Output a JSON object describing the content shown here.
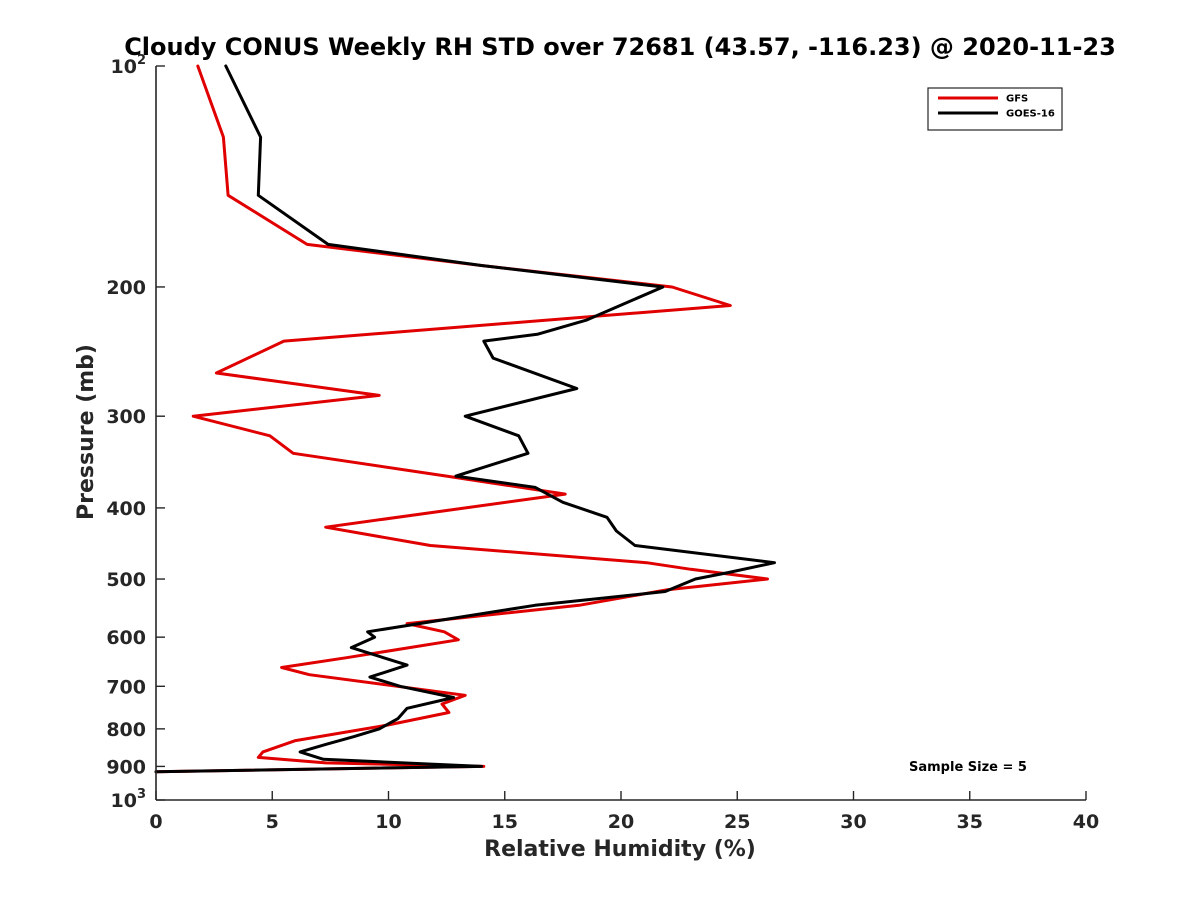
{
  "chart_data": {
    "type": "line",
    "title": "Cloudy CONUS Weekly RH STD over 72681 (43.57, -116.23) @ 2020-11-23",
    "xlabel": "Relative Humidity (%)",
    "ylabel": "Pressure (mb)",
    "xlim": [
      0,
      40
    ],
    "ylim": [
      100,
      1000
    ],
    "yscale": "log",
    "y_reversed": true,
    "x_ticks": [
      "0",
      "5",
      "10",
      "15",
      "20",
      "25",
      "30",
      "35",
      "40"
    ],
    "y_ticks": [
      {
        "value": 100,
        "label": "10",
        "sup": "2"
      },
      {
        "value": 200,
        "label": "200"
      },
      {
        "value": 300,
        "label": "300"
      },
      {
        "value": 400,
        "label": "400"
      },
      {
        "value": 500,
        "label": "500"
      },
      {
        "value": 600,
        "label": "600"
      },
      {
        "value": 700,
        "label": "700"
      },
      {
        "value": 800,
        "label": "800"
      },
      {
        "value": 900,
        "label": "900"
      },
      {
        "value": 1000,
        "label": "10",
        "sup": "3"
      }
    ],
    "legend_position": "top-right",
    "grid": false,
    "annotation": "Sample Size = 5",
    "series": [
      {
        "name": "GFS",
        "color": "#e00000",
        "points": [
          [
            1.8,
            100
          ],
          [
            2.9,
            125
          ],
          [
            3.1,
            150
          ],
          [
            6.5,
            175
          ],
          [
            14.0,
            187
          ],
          [
            22.2,
            200
          ],
          [
            24.7,
            212
          ],
          [
            5.5,
            237
          ],
          [
            2.6,
            262
          ],
          [
            9.6,
            281
          ],
          [
            1.6,
            300
          ],
          [
            4.9,
            319
          ],
          [
            5.9,
            337
          ],
          [
            12.5,
            362
          ],
          [
            17.6,
            383
          ],
          [
            7.3,
            425
          ],
          [
            11.8,
            450
          ],
          [
            21.1,
            475
          ],
          [
            23.0,
            485
          ],
          [
            26.3,
            500
          ],
          [
            22.0,
            517
          ],
          [
            18.2,
            543
          ],
          [
            10.8,
            575
          ],
          [
            12.4,
            590
          ],
          [
            13.0,
            605
          ],
          [
            8.2,
            640
          ],
          [
            5.4,
            660
          ],
          [
            6.6,
            675
          ],
          [
            13.3,
            720
          ],
          [
            12.3,
            740
          ],
          [
            12.6,
            760
          ],
          [
            10.0,
            790
          ],
          [
            6.0,
            830
          ],
          [
            4.6,
            860
          ],
          [
            4.4,
            875
          ],
          [
            7.3,
            890
          ],
          [
            14.1,
            900
          ],
          [
            0.0,
            915
          ]
        ]
      },
      {
        "name": "GOES-16",
        "color": "#000000",
        "points": [
          [
            3.0,
            100
          ],
          [
            4.5,
            125
          ],
          [
            4.4,
            150
          ],
          [
            7.4,
            175
          ],
          [
            14.0,
            187
          ],
          [
            21.8,
            200
          ],
          [
            18.5,
            222
          ],
          [
            16.4,
            232
          ],
          [
            14.1,
            237
          ],
          [
            14.5,
            250
          ],
          [
            18.1,
            275
          ],
          [
            13.3,
            300
          ],
          [
            15.6,
            319
          ],
          [
            16.0,
            337
          ],
          [
            12.9,
            362
          ],
          [
            16.3,
            375
          ],
          [
            17.5,
            393
          ],
          [
            19.4,
            412
          ],
          [
            19.8,
            430
          ],
          [
            20.6,
            450
          ],
          [
            26.6,
            475
          ],
          [
            24.6,
            490
          ],
          [
            23.2,
            500
          ],
          [
            21.9,
            520
          ],
          [
            16.3,
            543
          ],
          [
            9.1,
            590
          ],
          [
            9.4,
            600
          ],
          [
            8.4,
            620
          ],
          [
            10.8,
            655
          ],
          [
            9.2,
            680
          ],
          [
            10.5,
            700
          ],
          [
            12.8,
            725
          ],
          [
            10.8,
            750
          ],
          [
            10.4,
            775
          ],
          [
            9.6,
            800
          ],
          [
            8.5,
            820
          ],
          [
            7.3,
            840
          ],
          [
            6.2,
            860
          ],
          [
            7.2,
            880
          ],
          [
            14.0,
            900
          ],
          [
            0.0,
            915
          ]
        ]
      }
    ]
  }
}
